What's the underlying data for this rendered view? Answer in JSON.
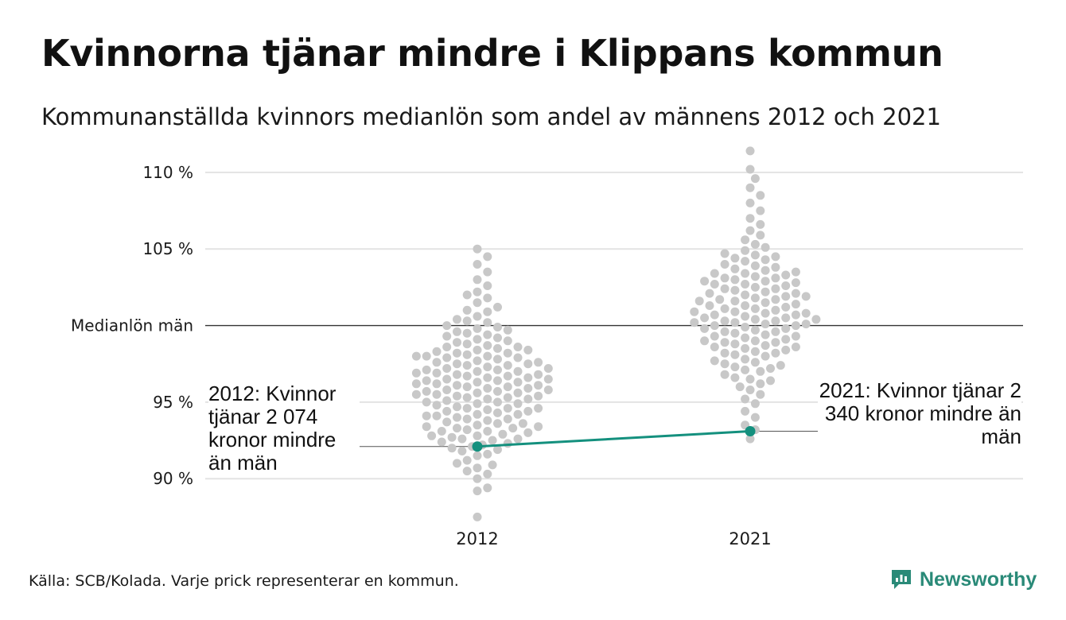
{
  "title": "Kvinnorna tjänar mindre i Klippans kommun",
  "subtitle": "Kommunanställda kvinnors medianlön som andel av männens 2012 och 2021",
  "source": "Källa: SCB/Kolada. Varje prick representerar en kommun.",
  "brand": {
    "name": "Newsworthy",
    "icon": "newsworthy-logo-icon",
    "color": "#2a8a78"
  },
  "chart_data": {
    "type": "scatter",
    "categories": [
      "2012",
      "2021"
    ],
    "ylim": [
      87,
      111.5
    ],
    "y_ticks": [
      {
        "value": 90,
        "label": "90 %"
      },
      {
        "value": 95,
        "label": "95 %"
      },
      {
        "value": 100,
        "label": "Medianlön män"
      },
      {
        "value": 105,
        "label": "105 %"
      },
      {
        "value": 110,
        "label": "110 %"
      }
    ],
    "grid": true,
    "reference_line": {
      "value": 100,
      "label": "Medianlön män"
    },
    "colors": {
      "dots": "#c8c8c8",
      "highlight": "#14907e",
      "grid": "#e3e3e3",
      "reference": "#333333"
    },
    "series": [
      {
        "values": [
          87.5,
          89.2,
          89.4,
          90.0,
          90.3,
          90.5,
          90.7,
          90.9,
          91.0,
          91.2,
          91.5,
          91.6,
          91.8,
          91.9,
          92.0,
          92.1,
          92.2,
          92.3,
          92.4,
          92.5,
          92.6,
          92.7,
          92.8,
          92.8,
          92.9,
          93.0,
          93.1,
          93.2,
          93.3,
          93.4,
          93.4,
          93.5,
          93.6,
          93.7,
          93.8,
          93.9,
          93.9,
          94.0,
          94.1,
          94.2,
          94.2,
          94.3,
          94.4,
          94.5,
          94.6,
          94.6,
          94.7,
          94.8,
          94.9,
          95.0,
          95.0,
          95.1,
          95.2,
          95.3,
          95.3,
          95.4,
          95.5,
          95.5,
          95.6,
          95.7,
          95.8,
          95.8,
          95.9,
          96.0,
          96.0,
          96.1,
          96.2,
          96.2,
          96.3,
          96.4,
          96.4,
          96.5,
          96.6,
          96.6,
          96.7,
          96.8,
          96.8,
          96.9,
          97.0,
          97.0,
          97.1,
          97.2,
          97.2,
          97.3,
          97.4,
          97.5,
          97.5,
          97.6,
          97.7,
          97.8,
          97.9,
          98.0,
          98.0,
          98.1,
          98.2,
          98.3,
          98.4,
          98.5,
          98.6,
          98.7,
          98.8,
          98.9,
          99.0,
          99.2,
          99.3,
          99.5,
          99.7,
          99.9,
          100.0,
          100.3,
          100.6,
          100.9,
          101.2,
          101.5,
          101.8,
          102.0,
          102.2,
          102.6,
          103.0,
          103.5,
          104.0,
          104.5,
          105.0,
          94.1,
          94.6,
          95.2,
          95.7,
          96.3,
          96.9,
          97.4,
          98.0,
          98.6,
          99.1,
          99.6,
          100.4,
          101.0,
          93.6,
          93.1,
          92.6,
          96.5,
          97.6,
          95.9,
          94.9,
          95.6,
          96.1,
          97.1,
          98.2,
          99.4,
          100.2,
          97.9,
          96.7,
          95.4,
          94.4,
          93.3,
          98.4,
          99.8
        ]
      },
      {
        "values": [
          92.6,
          93.2,
          93.5,
          94.0,
          94.4,
          94.9,
          95.2,
          95.5,
          95.8,
          96.0,
          96.2,
          96.4,
          96.6,
          96.8,
          97.0,
          97.1,
          97.3,
          97.4,
          97.6,
          97.7,
          97.8,
          98.0,
          98.1,
          98.2,
          98.3,
          98.4,
          98.5,
          98.6,
          98.7,
          98.8,
          98.9,
          99.0,
          99.1,
          99.2,
          99.3,
          99.4,
          99.5,
          99.6,
          99.7,
          99.8,
          99.9,
          100.0,
          100.0,
          100.1,
          100.2,
          100.3,
          100.3,
          100.4,
          100.5,
          100.6,
          100.7,
          100.7,
          100.8,
          100.9,
          101.0,
          101.1,
          101.2,
          101.3,
          101.4,
          101.5,
          101.6,
          101.7,
          101.8,
          101.9,
          102.0,
          102.1,
          102.2,
          102.3,
          102.4,
          102.5,
          102.6,
          102.7,
          102.8,
          102.9,
          103.0,
          103.1,
          103.2,
          103.3,
          103.4,
          103.5,
          103.6,
          103.7,
          103.9,
          104.0,
          104.2,
          104.3,
          104.5,
          104.7,
          104.9,
          105.1,
          105.3,
          105.6,
          105.9,
          106.2,
          106.6,
          107.0,
          107.5,
          108.0,
          108.5,
          109.0,
          109.6,
          110.2,
          111.4,
          97.5,
          98.9,
          99.6,
          100.5,
          101.3,
          102.1,
          102.9,
          103.8,
          104.6,
          100.1,
          100.9,
          101.6,
          99.0,
          98.2,
          97.2,
          102.4,
          103.1,
          100.4,
          99.8,
          101.1,
          102.7,
          98.6,
          100.8,
          101.9,
          103.4,
          96.5,
          104.4,
          100.2,
          99.3,
          101.7
        ]
      }
    ],
    "highlight": {
      "name": "Klippan",
      "points": [
        {
          "x": "2012",
          "y": 92.1
        },
        {
          "x": "2021",
          "y": 93.1
        }
      ]
    },
    "annotations": [
      {
        "x": "2012",
        "y": 92.1,
        "text": "2012: Kvinnor tjänar 2 074 kronor mindre än män"
      },
      {
        "x": "2021",
        "y": 93.1,
        "text": "2021: Kvinnor tjänar 2 340 kronor mindre än män"
      }
    ]
  }
}
